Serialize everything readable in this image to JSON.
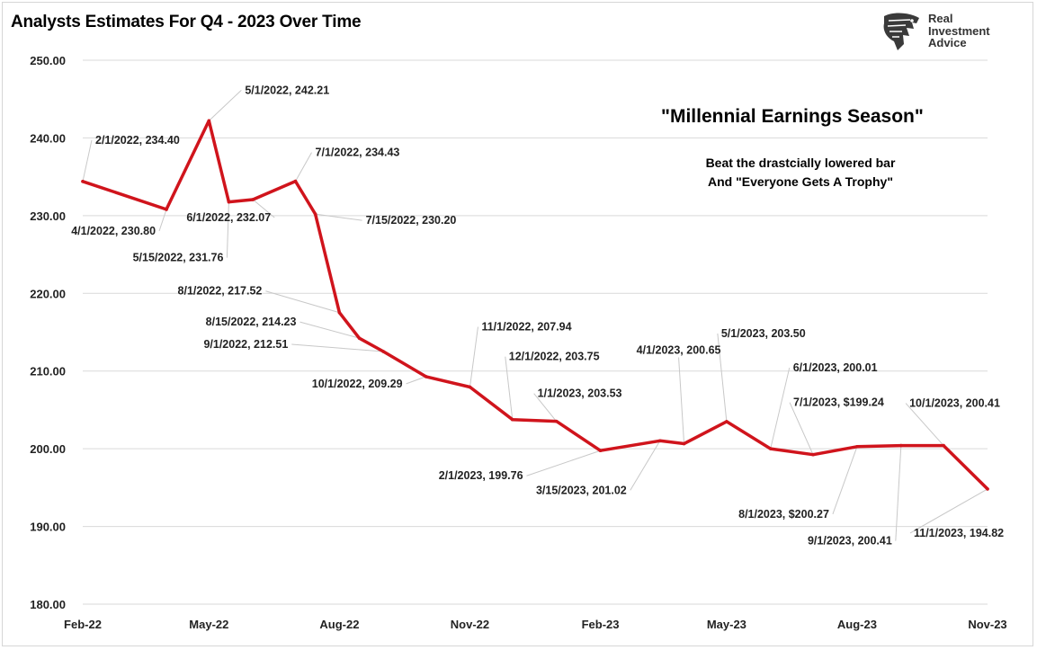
{
  "chart_data": {
    "type": "line",
    "title": "Analysts Estimates For Q4 - 2023 Over Time",
    "annotation_title": "\"Millennial Earnings Season\"",
    "annotation_lines": [
      "Beat the drastcially lowered bar",
      "And \"Everyone Gets A Trophy\""
    ],
    "xlabel": "",
    "ylabel": "",
    "ylim": [
      180,
      250
    ],
    "y_ticks": [
      "180.00",
      "190.00",
      "200.00",
      "210.00",
      "220.00",
      "230.00",
      "240.00",
      "250.00"
    ],
    "x_ticks": [
      {
        "date": "2022-02-01",
        "label": "Feb-22"
      },
      {
        "date": "2022-05-01",
        "label": "May-22"
      },
      {
        "date": "2022-08-01",
        "label": "Aug-22"
      },
      {
        "date": "2022-11-01",
        "label": "Nov-22"
      },
      {
        "date": "2023-02-01",
        "label": "Feb-23"
      },
      {
        "date": "2023-05-01",
        "label": "May-23"
      },
      {
        "date": "2023-08-01",
        "label": "Aug-23"
      },
      {
        "date": "2023-11-01",
        "label": "Nov-23"
      }
    ],
    "grid": true,
    "line_color": "#d0141c",
    "series": [
      {
        "points": [
          {
            "x": "2022-02-01",
            "y": 234.4,
            "label": "2/1/2022,  234.40"
          },
          {
            "x": "2022-04-01",
            "y": 230.8,
            "label": "4/1/2022,  230.80"
          },
          {
            "x": "2022-05-01",
            "y": 242.21,
            "label": "5/1/2022,  242.21"
          },
          {
            "x": "2022-05-15",
            "y": 231.76,
            "label": "5/15/2022,  231.76"
          },
          {
            "x": "2022-06-01",
            "y": 232.07,
            "label": "6/1/2022,  232.07"
          },
          {
            "x": "2022-07-01",
            "y": 234.43,
            "label": "7/1/2022,  234.43"
          },
          {
            "x": "2022-07-15",
            "y": 230.2,
            "label": "7/15/2022,  230.20"
          },
          {
            "x": "2022-08-01",
            "y": 217.52,
            "label": "8/1/2022,  217.52"
          },
          {
            "x": "2022-08-15",
            "y": 214.23,
            "label": "8/15/2022,  214.23"
          },
          {
            "x": "2022-09-01",
            "y": 212.51,
            "label": "9/1/2022,  212.51"
          },
          {
            "x": "2022-10-01",
            "y": 209.29,
            "label": "10/1/2022,  209.29"
          },
          {
            "x": "2022-11-01",
            "y": 207.94,
            "label": "11/1/2022,  207.94"
          },
          {
            "x": "2022-12-01",
            "y": 203.75,
            "label": "12/1/2022,  203.75"
          },
          {
            "x": "2023-01-01",
            "y": 203.53,
            "label": "1/1/2023,  203.53"
          },
          {
            "x": "2023-02-01",
            "y": 199.76,
            "label": "2/1/2023,  199.76"
          },
          {
            "x": "2023-03-15",
            "y": 201.02,
            "label": "3/15/2023,  201.02"
          },
          {
            "x": "2023-04-01",
            "y": 200.65,
            "label": "4/1/2023,  200.65"
          },
          {
            "x": "2023-05-01",
            "y": 203.5,
            "label": "5/1/2023,  203.50"
          },
          {
            "x": "2023-06-01",
            "y": 200.01,
            "label": "6/1/2023,  200.01"
          },
          {
            "x": "2023-07-01",
            "y": 199.24,
            "label": "7/1/2023, $199.24"
          },
          {
            "x": "2023-08-01",
            "y": 200.27,
            "label": "8/1/2023, $200.27"
          },
          {
            "x": "2023-09-01",
            "y": 200.41,
            "label": "9/1/2023,  200.41"
          },
          {
            "x": "2023-10-01",
            "y": 200.41,
            "label": "10/1/2023,  200.41"
          },
          {
            "x": "2023-11-01",
            "y": 194.82,
            "label": "11/1/2023,  194.82"
          }
        ]
      }
    ]
  },
  "logo": {
    "lines": [
      "Real",
      "Investment",
      "Advice"
    ],
    "icon": "eagle-head-icon"
  }
}
